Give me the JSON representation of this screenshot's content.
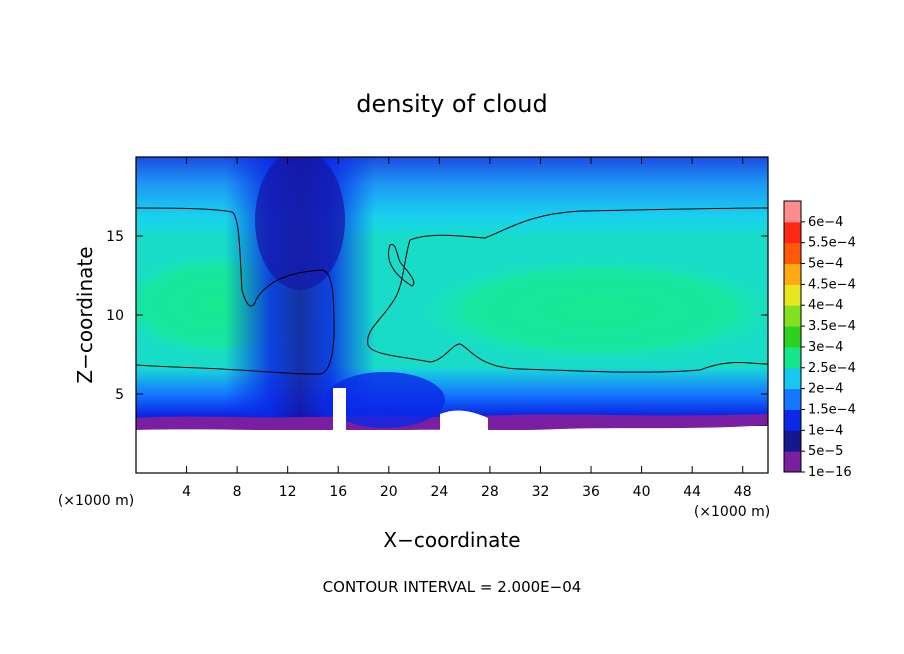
{
  "chart_data": {
    "type": "heatmap",
    "title": "density of cloud",
    "xlabel": "X−coordinate",
    "ylabel": "Z−coordinate",
    "x_unit": "(×1000 m)",
    "y_unit": "(×1000 m)",
    "xlim": [
      0,
      50
    ],
    "ylim": [
      0,
      20
    ],
    "x_ticks": [
      "4",
      "8",
      "12",
      "16",
      "20",
      "24",
      "28",
      "32",
      "36",
      "40",
      "44",
      "48"
    ],
    "x_tick_values": [
      4,
      8,
      12,
      16,
      20,
      24,
      28,
      32,
      36,
      40,
      44,
      48
    ],
    "y_ticks": [
      "5",
      "10",
      "15"
    ],
    "y_tick_values": [
      5,
      10,
      15
    ],
    "colorbar": {
      "labels": [
        "1e−16",
        "5e−5",
        "1e−4",
        "1.5e−4",
        "2e−4",
        "2.5e−4",
        "3e−4",
        "3.5e−4",
        "4e−4",
        "4.5e−4",
        "5e−4",
        "5.5e−4",
        "6e−4"
      ],
      "colors": [
        "#7a1fa2",
        "#16168e",
        "#0a28e6",
        "#1478ff",
        "#19c8f0",
        "#14e68c",
        "#2dd21e",
        "#82e11e",
        "#e6e61e",
        "#ffaa14",
        "#ff5a0a",
        "#ff2814",
        "#ff8c8c"
      ]
    },
    "contour_interval_label": "CONTOUR INTERVAL = 2.000E−04"
  }
}
